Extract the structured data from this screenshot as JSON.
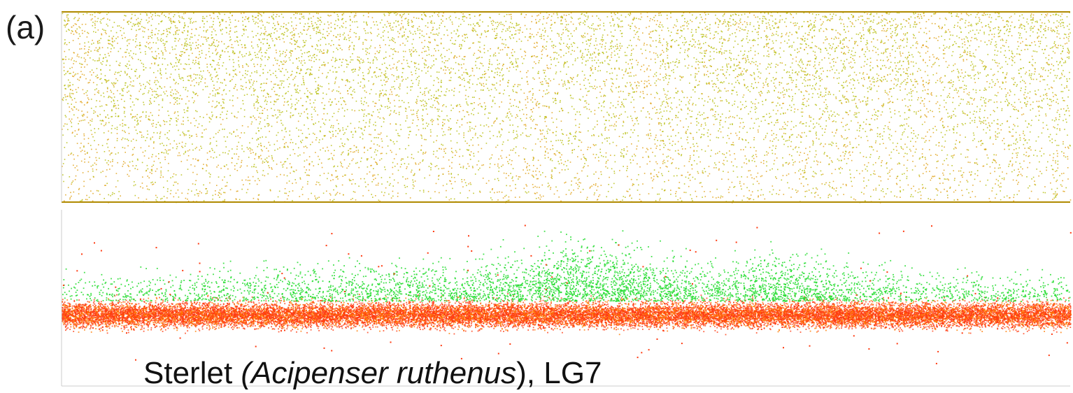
{
  "panel_label": "(a)",
  "caption": {
    "species": "Sterlet ",
    "latin": "(Acipenser ruthenus",
    "suffix": "), LG7"
  },
  "colors": {
    "top_axis_line": "#b08a00",
    "top_dense_point": "#b7be10",
    "top_sparse_point": "#e0a21a",
    "bottom_high_point": "#1edc2a",
    "bottom_low_point": "#ff3a10",
    "bottom_mid_point": "#ff7a00"
  },
  "chart_data": [
    {
      "type": "scatter",
      "panel": "top",
      "description_of_series": "point-density scatter along linkage group",
      "x_range": [
        0,
        1
      ],
      "y_range": [
        0,
        1
      ],
      "density_profile": {
        "x": [
          0.0,
          0.02,
          0.1,
          0.2,
          0.3,
          0.4,
          0.45,
          0.46,
          0.5,
          0.56,
          0.58,
          0.6,
          0.65,
          0.7,
          0.8,
          0.85,
          0.86,
          0.9,
          0.95,
          1.0
        ],
        "upper_density": [
          0.95,
          0.8,
          0.9,
          0.95,
          0.9,
          0.92,
          0.85,
          0.6,
          0.9,
          0.8,
          0.55,
          0.9,
          0.95,
          0.92,
          0.95,
          0.9,
          0.6,
          0.9,
          0.95,
          0.95
        ],
        "orange_bands": [
          0.02,
          0.47,
          0.58,
          0.86
        ]
      },
      "grid": false
    },
    {
      "type": "scatter",
      "panel": "bottom",
      "series": [
        {
          "color_role": "low",
          "level": 0.28
        },
        {
          "color_role": "high",
          "level": 0.55
        }
      ],
      "x_range": [
        0,
        1
      ],
      "y_range": [
        0,
        1
      ],
      "green_density_profile": {
        "x": [
          0.0,
          0.1,
          0.2,
          0.3,
          0.4,
          0.46,
          0.5,
          0.55,
          0.6,
          0.64,
          0.7,
          0.8,
          0.86,
          0.9,
          1.0
        ],
        "density": [
          0.15,
          0.25,
          0.35,
          0.45,
          0.55,
          0.7,
          1.0,
          1.0,
          0.7,
          0.5,
          0.8,
          0.45,
          0.25,
          0.3,
          0.2
        ]
      },
      "grid": false
    }
  ]
}
